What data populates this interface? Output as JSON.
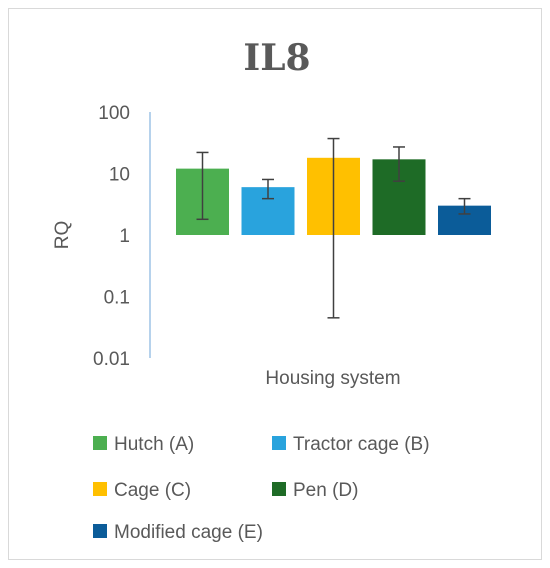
{
  "chart_data": {
    "type": "bar",
    "title": "IL8",
    "xlabel": "Housing system",
    "ylabel": "RQ",
    "yscale": "log",
    "ylim": [
      0.01,
      100
    ],
    "yticks": [
      "100",
      "10",
      "1",
      "0.1",
      "0.01"
    ],
    "baseline": 1,
    "legend_position": "bottom",
    "grid": false,
    "series": [
      {
        "name": "Hutch (A)",
        "value": 12,
        "err_low": 1.8,
        "err_high": 22,
        "color": "#4caf50"
      },
      {
        "name": "Tractor cage (B)",
        "value": 6,
        "err_low": 3.9,
        "err_high": 8,
        "color": "#29a3dd"
      },
      {
        "name": "Cage (C)",
        "value": 18,
        "err_low": 0.045,
        "err_high": 37,
        "color": "#ffc000"
      },
      {
        "name": "Pen (D)",
        "value": 17,
        "err_low": 7.5,
        "err_high": 27,
        "color": "#1e6b26"
      },
      {
        "name": "Modified cage (E)",
        "value": 3,
        "err_low": 2.2,
        "err_high": 3.9,
        "color": "#0b5c99"
      }
    ]
  }
}
